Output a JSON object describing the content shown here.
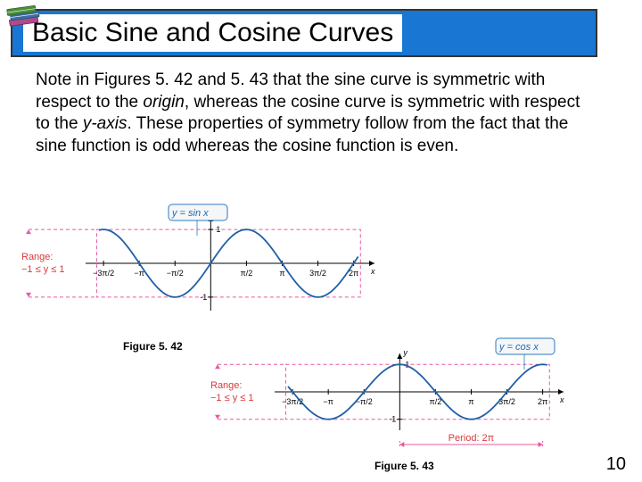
{
  "title": "Basic Sine and Cosine Curves",
  "body_html": "Note in Figures 5. 42 and 5. 43 that the sine curve is symmetric with respect to the <span class='it'>origin</span>, whereas the cosine curve is symmetric with respect to the <span class='it'>y-axis</span>. These properties of symmetry follow from the fact that the sine function is odd whereas the cosine function is even.",
  "figure1": {
    "caption": "Figure 5. 42",
    "equation": "y = sin x",
    "range_label": "Range:\n−1 ≤ y ≤ 1",
    "type": "line",
    "curve_color": "#1f5fa8",
    "axis_color": "#000000",
    "dash_color": "#e858a0",
    "background_color": "#ffffff",
    "box_fill": "#f4f6f8",
    "box_stroke": "#2b79c2",
    "x_ticks": [
      "−3π/2",
      "−π",
      "−π/2",
      "π/2",
      "π",
      "3π/2",
      "2π"
    ],
    "y_ticks": [
      "1",
      "-1"
    ],
    "xlim": [
      -5.5,
      7.2
    ],
    "ylim": [
      -1.4,
      1.4
    ]
  },
  "figure2": {
    "caption": "Figure 5. 43",
    "equation": "y = cos x",
    "range_label": "Range:\n−1 ≤ y ≤ 1",
    "period_label": "Period: 2π",
    "type": "line",
    "curve_color": "#1f5fa8",
    "axis_color": "#000000",
    "dash_color": "#e858a0",
    "background_color": "#ffffff",
    "box_fill": "#f4f6f8",
    "box_stroke": "#2b79c2",
    "x_ticks": [
      "−3π/2",
      "−π",
      "−π/2",
      "π/2",
      "π",
      "3π/2",
      "2π"
    ],
    "y_ticks": [
      "1",
      "-1"
    ],
    "xlim": [
      -5.5,
      7.2
    ],
    "ylim": [
      -1.4,
      1.4
    ]
  },
  "page_number": "10",
  "books_icon": {
    "colors": [
      "#4a8f3a",
      "#3a6fa8",
      "#b04a8a"
    ]
  }
}
